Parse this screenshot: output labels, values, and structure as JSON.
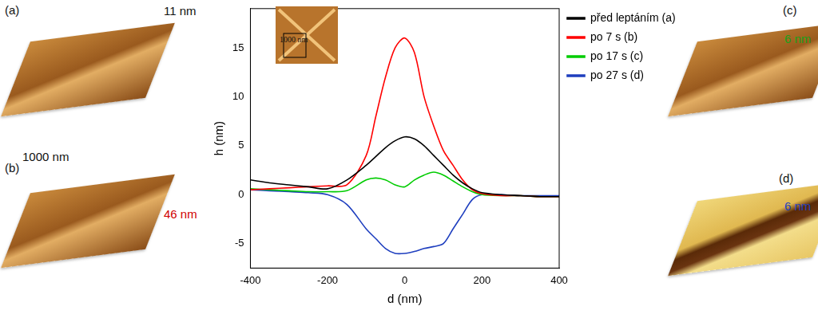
{
  "chart_data": {
    "type": "line",
    "x_label": "d (nm)",
    "y_label": "h (nm)",
    "x": [
      -400,
      -350,
      -300,
      -250,
      -200,
      -150,
      -100,
      -75,
      -50,
      -25,
      0,
      25,
      50,
      75,
      100,
      125,
      150,
      175,
      200,
      250,
      300,
      350,
      400
    ],
    "series": [
      {
        "name": "před leptáním (a)",
        "color": "#000000",
        "values": [
          1.5,
          1.2,
          1.0,
          0.8,
          0.6,
          1.5,
          3.0,
          3.9,
          4.8,
          5.5,
          5.9,
          5.7,
          5.0,
          4.0,
          3.0,
          2.0,
          1.2,
          0.6,
          0.2,
          0,
          -0.1,
          -0.2,
          -0.2
        ]
      },
      {
        "name": "po 7 s (b)",
        "color": "#ff0000",
        "values": [
          0.5,
          0.6,
          0.7,
          0.8,
          0.9,
          1.0,
          4.0,
          8.0,
          12.0,
          15.0,
          16.0,
          14.5,
          10.0,
          7.0,
          4.5,
          3.0,
          1.5,
          0.5,
          0.1,
          -0.1,
          -0.1,
          -0.2,
          -0.2
        ]
      },
      {
        "name": "po 17 s (c)",
        "color": "#00cc00",
        "values": [
          0.6,
          0.5,
          0.4,
          0.3,
          0.3,
          0.4,
          1.5,
          1.7,
          1.5,
          1.0,
          0.8,
          1.5,
          2.0,
          2.3,
          2.0,
          1.4,
          0.8,
          0.3,
          0,
          -0.1,
          -0.1,
          -0.2,
          -0.2
        ]
      },
      {
        "name": "po 27 s (d)",
        "color": "#1f3fbf",
        "values": [
          0.5,
          0.4,
          0.3,
          0.2,
          0,
          -1.0,
          -3.5,
          -4.5,
          -5.5,
          -6.0,
          -6.0,
          -5.8,
          -5.5,
          -5.3,
          -5.0,
          -3.5,
          -2.0,
          -0.5,
          0,
          0,
          -0.1,
          -0.1,
          -0.1
        ]
      }
    ],
    "xlim": [
      -400,
      400
    ],
    "xticks": [
      -400,
      -200,
      0,
      200,
      400
    ],
    "ylim": [
      -7.5,
      19
    ],
    "yticks": [
      -5,
      0,
      5,
      10,
      15
    ],
    "grid": false,
    "legend": "upper right",
    "annotations": [
      "(a)",
      "11 nm",
      "1000 nm",
      "(b)",
      "46 nm",
      "(c)",
      "6 nm",
      "(d)",
      "6 nm",
      "1000 nm"
    ]
  }
}
